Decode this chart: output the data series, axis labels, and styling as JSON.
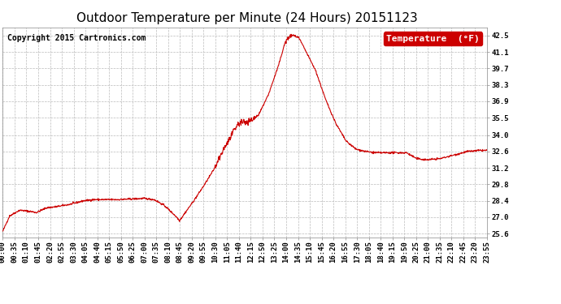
{
  "title": "Outdoor Temperature per Minute (24 Hours) 20151123",
  "copyright_text": "Copyright 2015 Cartronics.com",
  "legend_label": "Temperature  (°F)",
  "line_color": "#cc0000",
  "background_color": "#ffffff",
  "plot_bg_color": "#ffffff",
  "grid_color": "#bbbbbb",
  "yticks": [
    25.6,
    27.0,
    28.4,
    29.8,
    31.2,
    32.6,
    34.0,
    35.5,
    36.9,
    38.3,
    39.7,
    41.1,
    42.5
  ],
  "ylim": [
    25.3,
    43.2
  ],
  "xtick_labels": [
    "00:00",
    "00:35",
    "01:10",
    "01:45",
    "02:20",
    "02:55",
    "03:30",
    "04:05",
    "04:40",
    "05:15",
    "05:50",
    "06:25",
    "07:00",
    "07:35",
    "08:10",
    "08:45",
    "09:20",
    "09:55",
    "10:30",
    "11:05",
    "11:40",
    "12:15",
    "12:50",
    "13:25",
    "14:00",
    "14:35",
    "15:10",
    "15:45",
    "16:20",
    "16:55",
    "17:30",
    "18:05",
    "18:40",
    "19:15",
    "19:50",
    "20:25",
    "21:00",
    "21:35",
    "22:10",
    "22:45",
    "23:20",
    "23:55"
  ],
  "title_fontsize": 11,
  "tick_fontsize": 6.5,
  "legend_fontsize": 8,
  "copyright_fontsize": 7
}
